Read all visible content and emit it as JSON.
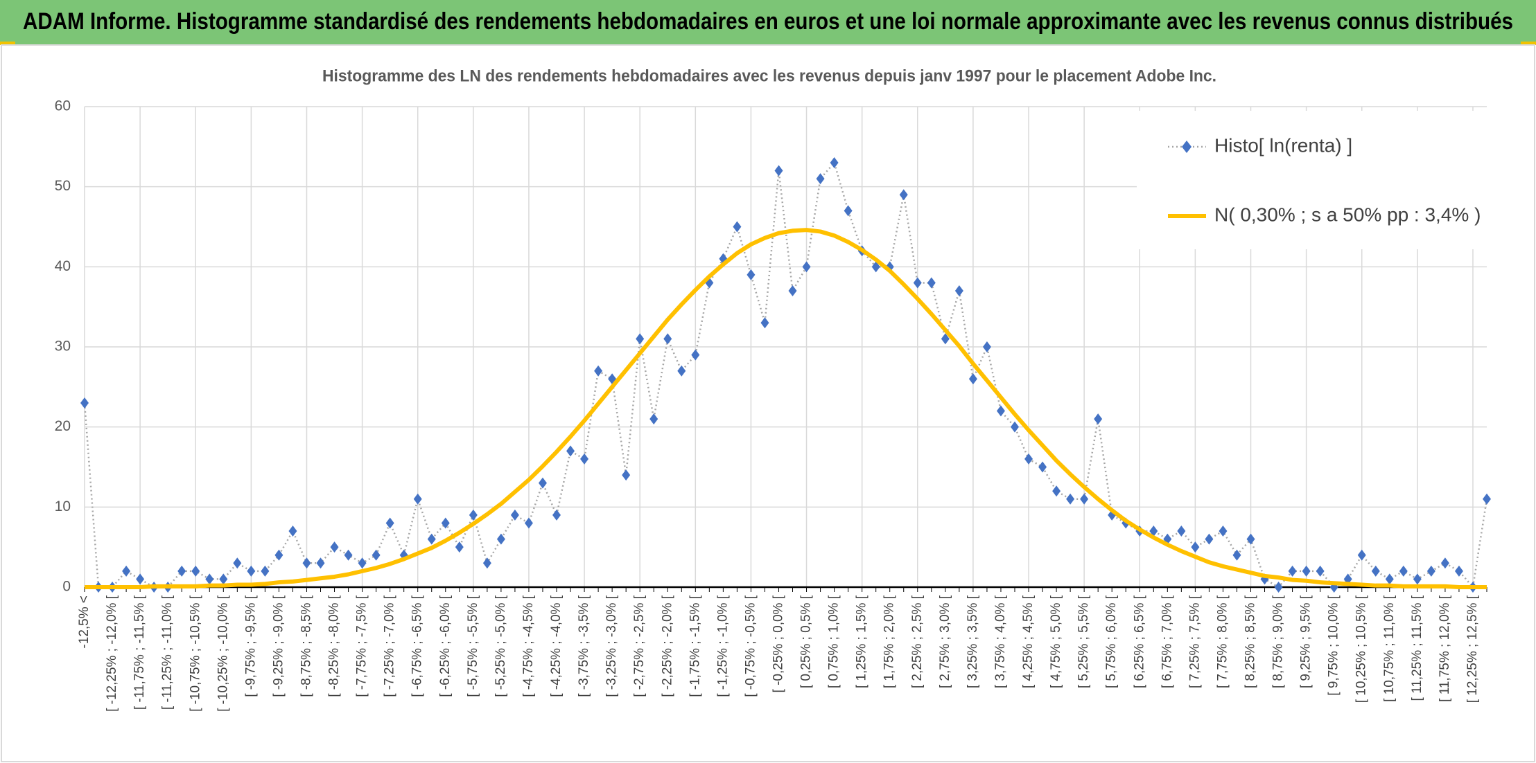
{
  "chart_data": {
    "type": "line",
    "title": "ADAM Informe. Histogramme standardisé des rendements hebdomadaires en euros et une loi normale approximante avec les revenus connus distribués",
    "subtitle": "Histogramme des LN des rendements hebdomadaires avec les revenus depuis janv 1997 pour le placement Adobe Inc.",
    "categories": [
      "-12,5% <",
      null,
      "[ -12,25% ; -12,0% [",
      null,
      "[ -11,75% ; -11,5% [",
      null,
      "[ -11,25% ; -11,0% [",
      null,
      "[ -10,75% ; -10,5% [",
      null,
      "[ -10,25% ; -10,0% [",
      null,
      "[ -9,75% ; -9,5% [",
      null,
      "[ -9,25% ; -9,0% [",
      null,
      "[ -8,75% ; -8,5% [",
      null,
      "[ -8,25% ; -8,0% [",
      null,
      "[ -7,75% ; -7,5% [",
      null,
      "[ -7,25% ; -7,0% [",
      null,
      "[ -6,75% ; -6,5% [",
      null,
      "[ -6,25% ; -6,0% [",
      null,
      "[ -5,75% ; -5,5% [",
      null,
      "[ -5,25% ; -5,0% [",
      null,
      "[ -4,75% ; -4,5% [",
      null,
      "[ -4,25% ; -4,0% [",
      null,
      "[ -3,75% ; -3,5% [",
      null,
      "[ -3,25% ; -3,0% [",
      null,
      "[ -2,75% ; -2,5% [",
      null,
      "[ -2,25% ; -2,0% [",
      null,
      "[ -1,75% ; -1,5% [",
      null,
      "[ -1,25% ; -1,0% [",
      null,
      "[ -0,75% ; -0,5% [",
      null,
      "[ -0,25% ; 0,0% [",
      null,
      "[ 0,25% ; 0,5% [",
      null,
      "[ 0,75% ; 1,0% [",
      null,
      "[ 1,25% ; 1,5% [",
      null,
      "[ 1,75% ; 2,0% [",
      null,
      "[ 2,25% ; 2,5% [",
      null,
      "[ 2,75% ; 3,0% [",
      null,
      "[ 3,25% ; 3,5% [",
      null,
      "[ 3,75% ; 4,0% [",
      null,
      "[ 4,25% ; 4,5% [",
      null,
      "[ 4,75% ; 5,0% [",
      null,
      "[ 5,25% ; 5,5% [",
      null,
      "[ 5,75% ; 6,0% [",
      null,
      "[ 6,25% ; 6,5% [",
      null,
      "[ 6,75% ; 7,0% [",
      null,
      "[ 7,25% ; 7,5% [",
      null,
      "[ 7,75% ; 8,0% [",
      null,
      "[ 8,25% ; 8,5% [",
      null,
      "[ 8,75% ; 9,0% [",
      null,
      "[ 9,25% ; 9,5% [",
      null,
      "[ 9,75% ; 10,0% [",
      null,
      "[ 10,25% ; 10,5% [",
      null,
      "[ 10,75% ; 11,0% [",
      null,
      "[ 11,25% ; 11,5% [",
      null,
      "[ 11,75% ; 12,0% [",
      null,
      "[ 12,25% ; 12,5% [",
      null
    ],
    "series": [
      {
        "name": "Histo[ ln(renta) ]",
        "color": "#4472c4",
        "line_color": "#a6a6a6",
        "marker": "diamond",
        "values": [
          23,
          0,
          0,
          2,
          1,
          0,
          0,
          2,
          2,
          1,
          1,
          3,
          2,
          2,
          4,
          7,
          3,
          3,
          5,
          4,
          3,
          4,
          8,
          4,
          11,
          6,
          8,
          5,
          9,
          3,
          6,
          9,
          8,
          13,
          9,
          17,
          16,
          27,
          26,
          14,
          31,
          21,
          31,
          27,
          29,
          38,
          41,
          45,
          39,
          33,
          52,
          37,
          40,
          51,
          53,
          47,
          42,
          40,
          40,
          49,
          38,
          38,
          31,
          37,
          26,
          30,
          22,
          20,
          16,
          15,
          12,
          11,
          11,
          21,
          9,
          8,
          7,
          7,
          6,
          7,
          5,
          6,
          7,
          4,
          6,
          1,
          0,
          2,
          2,
          2,
          0,
          1,
          4,
          2,
          1,
          2,
          1,
          2,
          3,
          2,
          0,
          11
        ]
      },
      {
        "name": "N( 0,30% ; s a 50% pp : 3,4% )",
        "color": "#ffc000",
        "values": [
          0.0,
          0.0,
          0.0,
          0.0,
          0.0,
          0.1,
          0.1,
          0.1,
          0.1,
          0.2,
          0.2,
          0.3,
          0.3,
          0.4,
          0.6,
          0.7,
          0.9,
          1.1,
          1.3,
          1.6,
          2.0,
          2.4,
          2.9,
          3.5,
          4.2,
          4.9,
          5.8,
          6.8,
          7.9,
          9.1,
          10.4,
          11.9,
          13.4,
          15.1,
          16.9,
          18.8,
          20.8,
          22.9,
          25.0,
          27.1,
          29.2,
          31.3,
          33.4,
          35.3,
          37.1,
          38.8,
          40.3,
          41.7,
          42.8,
          43.6,
          44.2,
          44.5,
          44.6,
          44.4,
          43.9,
          43.1,
          42.1,
          40.9,
          39.5,
          37.8,
          36.0,
          34.1,
          32.1,
          30.1,
          27.9,
          25.8,
          23.7,
          21.6,
          19.6,
          17.7,
          15.8,
          14.1,
          12.5,
          11.0,
          9.6,
          8.3,
          7.2,
          6.2,
          5.3,
          4.5,
          3.8,
          3.1,
          2.6,
          2.2,
          1.8,
          1.4,
          1.2,
          0.9,
          0.8,
          0.6,
          0.5,
          0.4,
          0.3,
          0.2,
          0.2,
          0.1,
          0.1,
          0.1,
          0.1,
          0.0,
          0.0,
          0.0
        ]
      }
    ],
    "ylim": [
      0,
      60
    ],
    "yticks": [
      0,
      10,
      20,
      30,
      40,
      50,
      60
    ],
    "grid": true,
    "legend": "top-right"
  }
}
